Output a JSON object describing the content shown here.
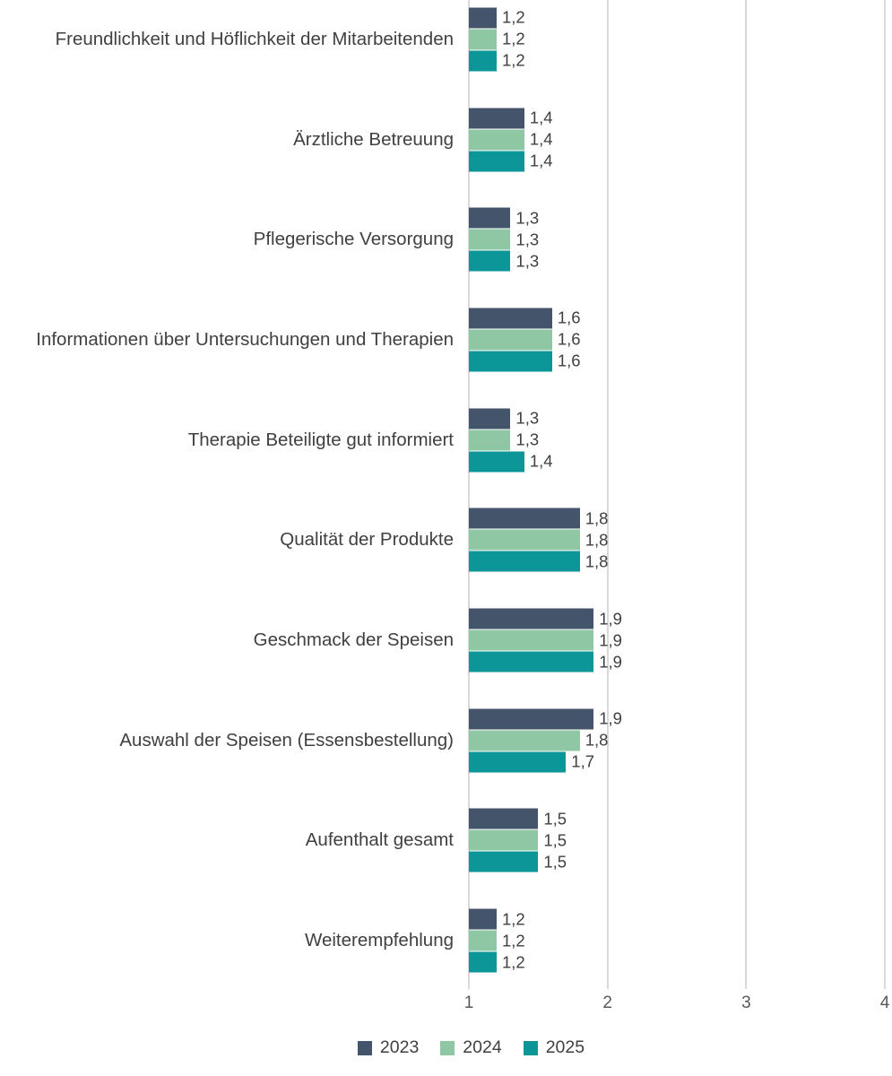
{
  "chart_data": {
    "type": "bar",
    "orientation": "horizontal",
    "title": "",
    "xlabel": "",
    "ylabel": "",
    "xlim": [
      1,
      4
    ],
    "x_ticks": [
      "1",
      "2",
      "3",
      "4"
    ],
    "grid": true,
    "legend_position": "bottom",
    "decimal_separator": ",",
    "categories": [
      "Freundlichkeit und Höflichkeit der Mitarbeitenden",
      "Ärztliche Betreuung",
      "Pflegerische Versorgung",
      "Informationen über Untersuchungen und Therapien",
      "Therapie Beteiligte gut informiert",
      "Qualität der Produkte",
      "Geschmack der Speisen",
      "Auswahl der Speisen (Essensbestellung)",
      "Aufenthalt gesamt",
      "Weiterempfehlung"
    ],
    "series": [
      {
        "name": "2023",
        "color": "#44546a",
        "values": [
          1.2,
          1.4,
          1.3,
          1.6,
          1.3,
          1.8,
          1.9,
          1.9,
          1.5,
          1.2
        ],
        "labels": [
          "1,2",
          "1,4",
          "1,3",
          "1,6",
          "1,3",
          "1,8",
          "1,9",
          "1,9",
          "1,5",
          "1,2"
        ]
      },
      {
        "name": "2024",
        "color": "#8fc7a4",
        "values": [
          1.2,
          1.4,
          1.3,
          1.6,
          1.3,
          1.8,
          1.9,
          1.8,
          1.5,
          1.2
        ],
        "labels": [
          "1,2",
          "1,4",
          "1,3",
          "1,6",
          "1,3",
          "1,8",
          "1,9",
          "1,8",
          "1,5",
          "1,2"
        ]
      },
      {
        "name": "2025",
        "color": "#0d9698",
        "values": [
          1.2,
          1.4,
          1.3,
          1.6,
          1.4,
          1.8,
          1.9,
          1.7,
          1.5,
          1.2
        ],
        "labels": [
          "1,2",
          "1,4",
          "1,3",
          "1,6",
          "1,4",
          "1,8",
          "1,9",
          "1,7",
          "1,5",
          "1,2"
        ]
      }
    ]
  },
  "legend": {
    "items": [
      {
        "label": "2023",
        "color": "#44546a"
      },
      {
        "label": "2024",
        "color": "#8fc7a4"
      },
      {
        "label": "2025",
        "color": "#0d9698"
      }
    ]
  },
  "colors": {
    "gridline": "#d9d9d9",
    "category_text": "#404040",
    "value_text": "#404040",
    "axis_text": "#595959",
    "background": "#ffffff"
  }
}
